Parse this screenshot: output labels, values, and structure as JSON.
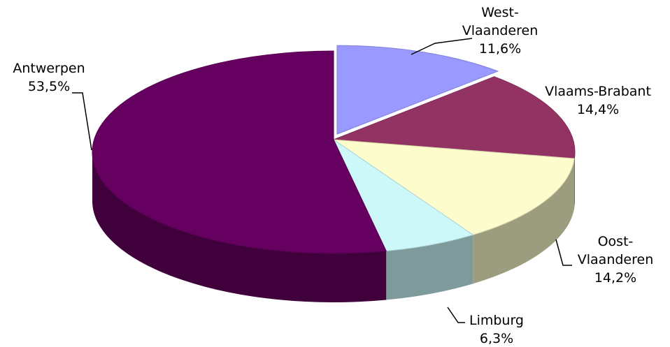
{
  "chart_data": {
    "type": "pie",
    "style": "3d",
    "categories": [
      "West-Vlaanderen",
      "Vlaams-Brabant",
      "Oost-Vlaanderen",
      "Limburg",
      "Antwerpen"
    ],
    "values": [
      11.6,
      14.4,
      14.2,
      6.3,
      53.5
    ],
    "value_labels": [
      "11,6%",
      "14,4%",
      "14,2%",
      "6,3%",
      "53,5%"
    ],
    "colors": [
      "#9999ff",
      "#933363",
      "#fcfccc",
      "#ccf8fa",
      "#660060"
    ],
    "exploded": [
      true,
      false,
      false,
      false,
      false
    ]
  }
}
